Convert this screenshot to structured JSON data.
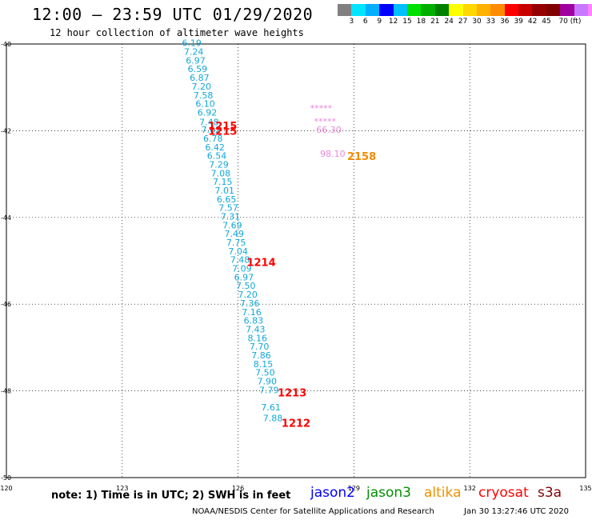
{
  "header": {
    "title": "12:00 – 23:59 UTC 01/29/2020",
    "subtitle": "12 hour collection of altimeter wave heights"
  },
  "colorbar": {
    "colors": [
      "#808080",
      "#00e5ff",
      "#00b0ff",
      "#0000ff",
      "#00bfff",
      "#00e000",
      "#00b000",
      "#008000",
      "#ffff00",
      "#ffd800",
      "#ffb000",
      "#ff8c00",
      "#ff0000",
      "#c80000",
      "#960000",
      "#800000",
      "#a000a0",
      "#c878ff",
      "#ff80ff",
      "#000000"
    ],
    "labels": [
      "3",
      "6",
      "9",
      "12",
      "15",
      "18",
      "21",
      "24",
      "27",
      "30",
      "33",
      "36",
      "39",
      "42",
      "45",
      "70 (ft)"
    ]
  },
  "map": {
    "lon_ticks": [
      "120",
      "123",
      "126",
      "129",
      "132",
      "135"
    ],
    "lat_ticks": [
      "-40",
      "-42",
      "-44",
      "-46",
      "-48",
      "-50"
    ]
  },
  "chart_data": {
    "type": "scatter",
    "xlim": [
      120,
      135
    ],
    "ylim": [
      -50,
      -40
    ],
    "grid": true,
    "series": [
      {
        "name": "jason3",
        "color": "#10a8d8",
        "points": [
          {
            "lon": 124.8,
            "lat": -40.05,
            "label": "6.19"
          },
          {
            "lon": 124.85,
            "lat": -40.25,
            "label": "7.24"
          },
          {
            "lon": 124.9,
            "lat": -40.45,
            "label": "6.97"
          },
          {
            "lon": 124.95,
            "lat": -40.65,
            "label": "6.59"
          },
          {
            "lon": 125.0,
            "lat": -40.85,
            "label": "6.87"
          },
          {
            "lon": 125.05,
            "lat": -41.05,
            "label": "7.20"
          },
          {
            "lon": 125.1,
            "lat": -41.25,
            "label": "7.58"
          },
          {
            "lon": 125.15,
            "lat": -41.45,
            "label": "6.10"
          },
          {
            "lon": 125.2,
            "lat": -41.65,
            "label": "6.92"
          },
          {
            "lon": 125.25,
            "lat": -41.87,
            "label": "7.48"
          },
          {
            "lon": 125.3,
            "lat": -42.05,
            "label": "7.02"
          },
          {
            "lon": 125.35,
            "lat": -42.25,
            "label": "6.78"
          },
          {
            "lon": 125.4,
            "lat": -42.45,
            "label": "6.42"
          },
          {
            "lon": 125.45,
            "lat": -42.65,
            "label": "6.54"
          },
          {
            "lon": 125.5,
            "lat": -42.85,
            "label": "7.29"
          },
          {
            "lon": 125.55,
            "lat": -43.05,
            "label": "7.08"
          },
          {
            "lon": 125.6,
            "lat": -43.25,
            "label": "7.15"
          },
          {
            "lon": 125.65,
            "lat": -43.45,
            "label": "7.01"
          },
          {
            "lon": 125.7,
            "lat": -43.65,
            "label": "6.65"
          },
          {
            "lon": 125.75,
            "lat": -43.85,
            "label": "7.57"
          },
          {
            "lon": 125.8,
            "lat": -44.05,
            "label": "7.31"
          },
          {
            "lon": 125.85,
            "lat": -44.25,
            "label": "7.69"
          },
          {
            "lon": 125.9,
            "lat": -44.45,
            "label": "7.49"
          },
          {
            "lon": 125.95,
            "lat": -44.65,
            "label": "7.75"
          },
          {
            "lon": 126.0,
            "lat": -44.85,
            "label": "7.04"
          },
          {
            "lon": 126.05,
            "lat": -45.05,
            "label": "7.48"
          },
          {
            "lon": 126.1,
            "lat": -45.25,
            "label": "7.09"
          },
          {
            "lon": 126.15,
            "lat": -45.45,
            "label": "6.97"
          },
          {
            "lon": 126.2,
            "lat": -45.65,
            "label": "7.50"
          },
          {
            "lon": 126.25,
            "lat": -45.85,
            "label": "7.20"
          },
          {
            "lon": 126.3,
            "lat": -46.05,
            "label": "7.36"
          },
          {
            "lon": 126.35,
            "lat": -46.25,
            "label": "7.16"
          },
          {
            "lon": 126.4,
            "lat": -46.45,
            "label": "6.83"
          },
          {
            "lon": 126.45,
            "lat": -46.65,
            "label": "7.43"
          },
          {
            "lon": 126.5,
            "lat": -46.85,
            "label": "8.16"
          },
          {
            "lon": 126.55,
            "lat": -47.05,
            "label": "7.70"
          },
          {
            "lon": 126.6,
            "lat": -47.25,
            "label": "7.86"
          },
          {
            "lon": 126.65,
            "lat": -47.45,
            "label": "8.15"
          },
          {
            "lon": 126.7,
            "lat": -47.65,
            "label": "7.50"
          },
          {
            "lon": 126.75,
            "lat": -47.85,
            "label": "7.90"
          },
          {
            "lon": 126.8,
            "lat": -48.05,
            "label": "7.79"
          },
          {
            "lon": 126.85,
            "lat": -48.45,
            "label": "7.61"
          },
          {
            "lon": 126.9,
            "lat": -48.7,
            "label": "7.88"
          }
        ]
      },
      {
        "name": "s3a",
        "color": "#e888d8",
        "points": [
          {
            "lon": 128.15,
            "lat": -41.55,
            "label": "*****"
          },
          {
            "lon": 128.25,
            "lat": -41.85,
            "label": "*****"
          },
          {
            "lon": 128.35,
            "lat": -42.05,
            "label": "66.30"
          },
          {
            "lon": 128.45,
            "lat": -42.6,
            "label": "98.10"
          }
        ]
      }
    ],
    "time_labels": [
      {
        "lon": 125.6,
        "lat": -41.9,
        "text": "1215",
        "color": "#ff0000"
      },
      {
        "lon": 125.6,
        "lat": -42.02,
        "text": "1215",
        "color": "#ff0000"
      },
      {
        "lon": 129.2,
        "lat": -42.6,
        "text": "2158",
        "color": "#f08c00"
      },
      {
        "lon": 126.6,
        "lat": -45.05,
        "text": "1214",
        "color": "#ff0000"
      },
      {
        "lon": 127.4,
        "lat": -48.05,
        "text": "1213",
        "color": "#ff0000"
      },
      {
        "lon": 127.5,
        "lat": -48.75,
        "text": "1212",
        "color": "#ff0000"
      }
    ]
  },
  "footer": {
    "note": "note: 1) Time is in UTC; 2) SWH is in feet",
    "satellites": [
      {
        "name": "jason2",
        "color": "#0000ff"
      },
      {
        "name": "jason3",
        "color": "#009000"
      },
      {
        "name": "altika",
        "color": "#f09000"
      },
      {
        "name": "cryosat",
        "color": "#ff0000"
      },
      {
        "name": "s3a",
        "color": "#800000"
      }
    ],
    "credit": "NOAA/NESDIS Center for Satellite Applications and Research",
    "generated": "Jan 30 13:27:46 UTC 2020"
  }
}
